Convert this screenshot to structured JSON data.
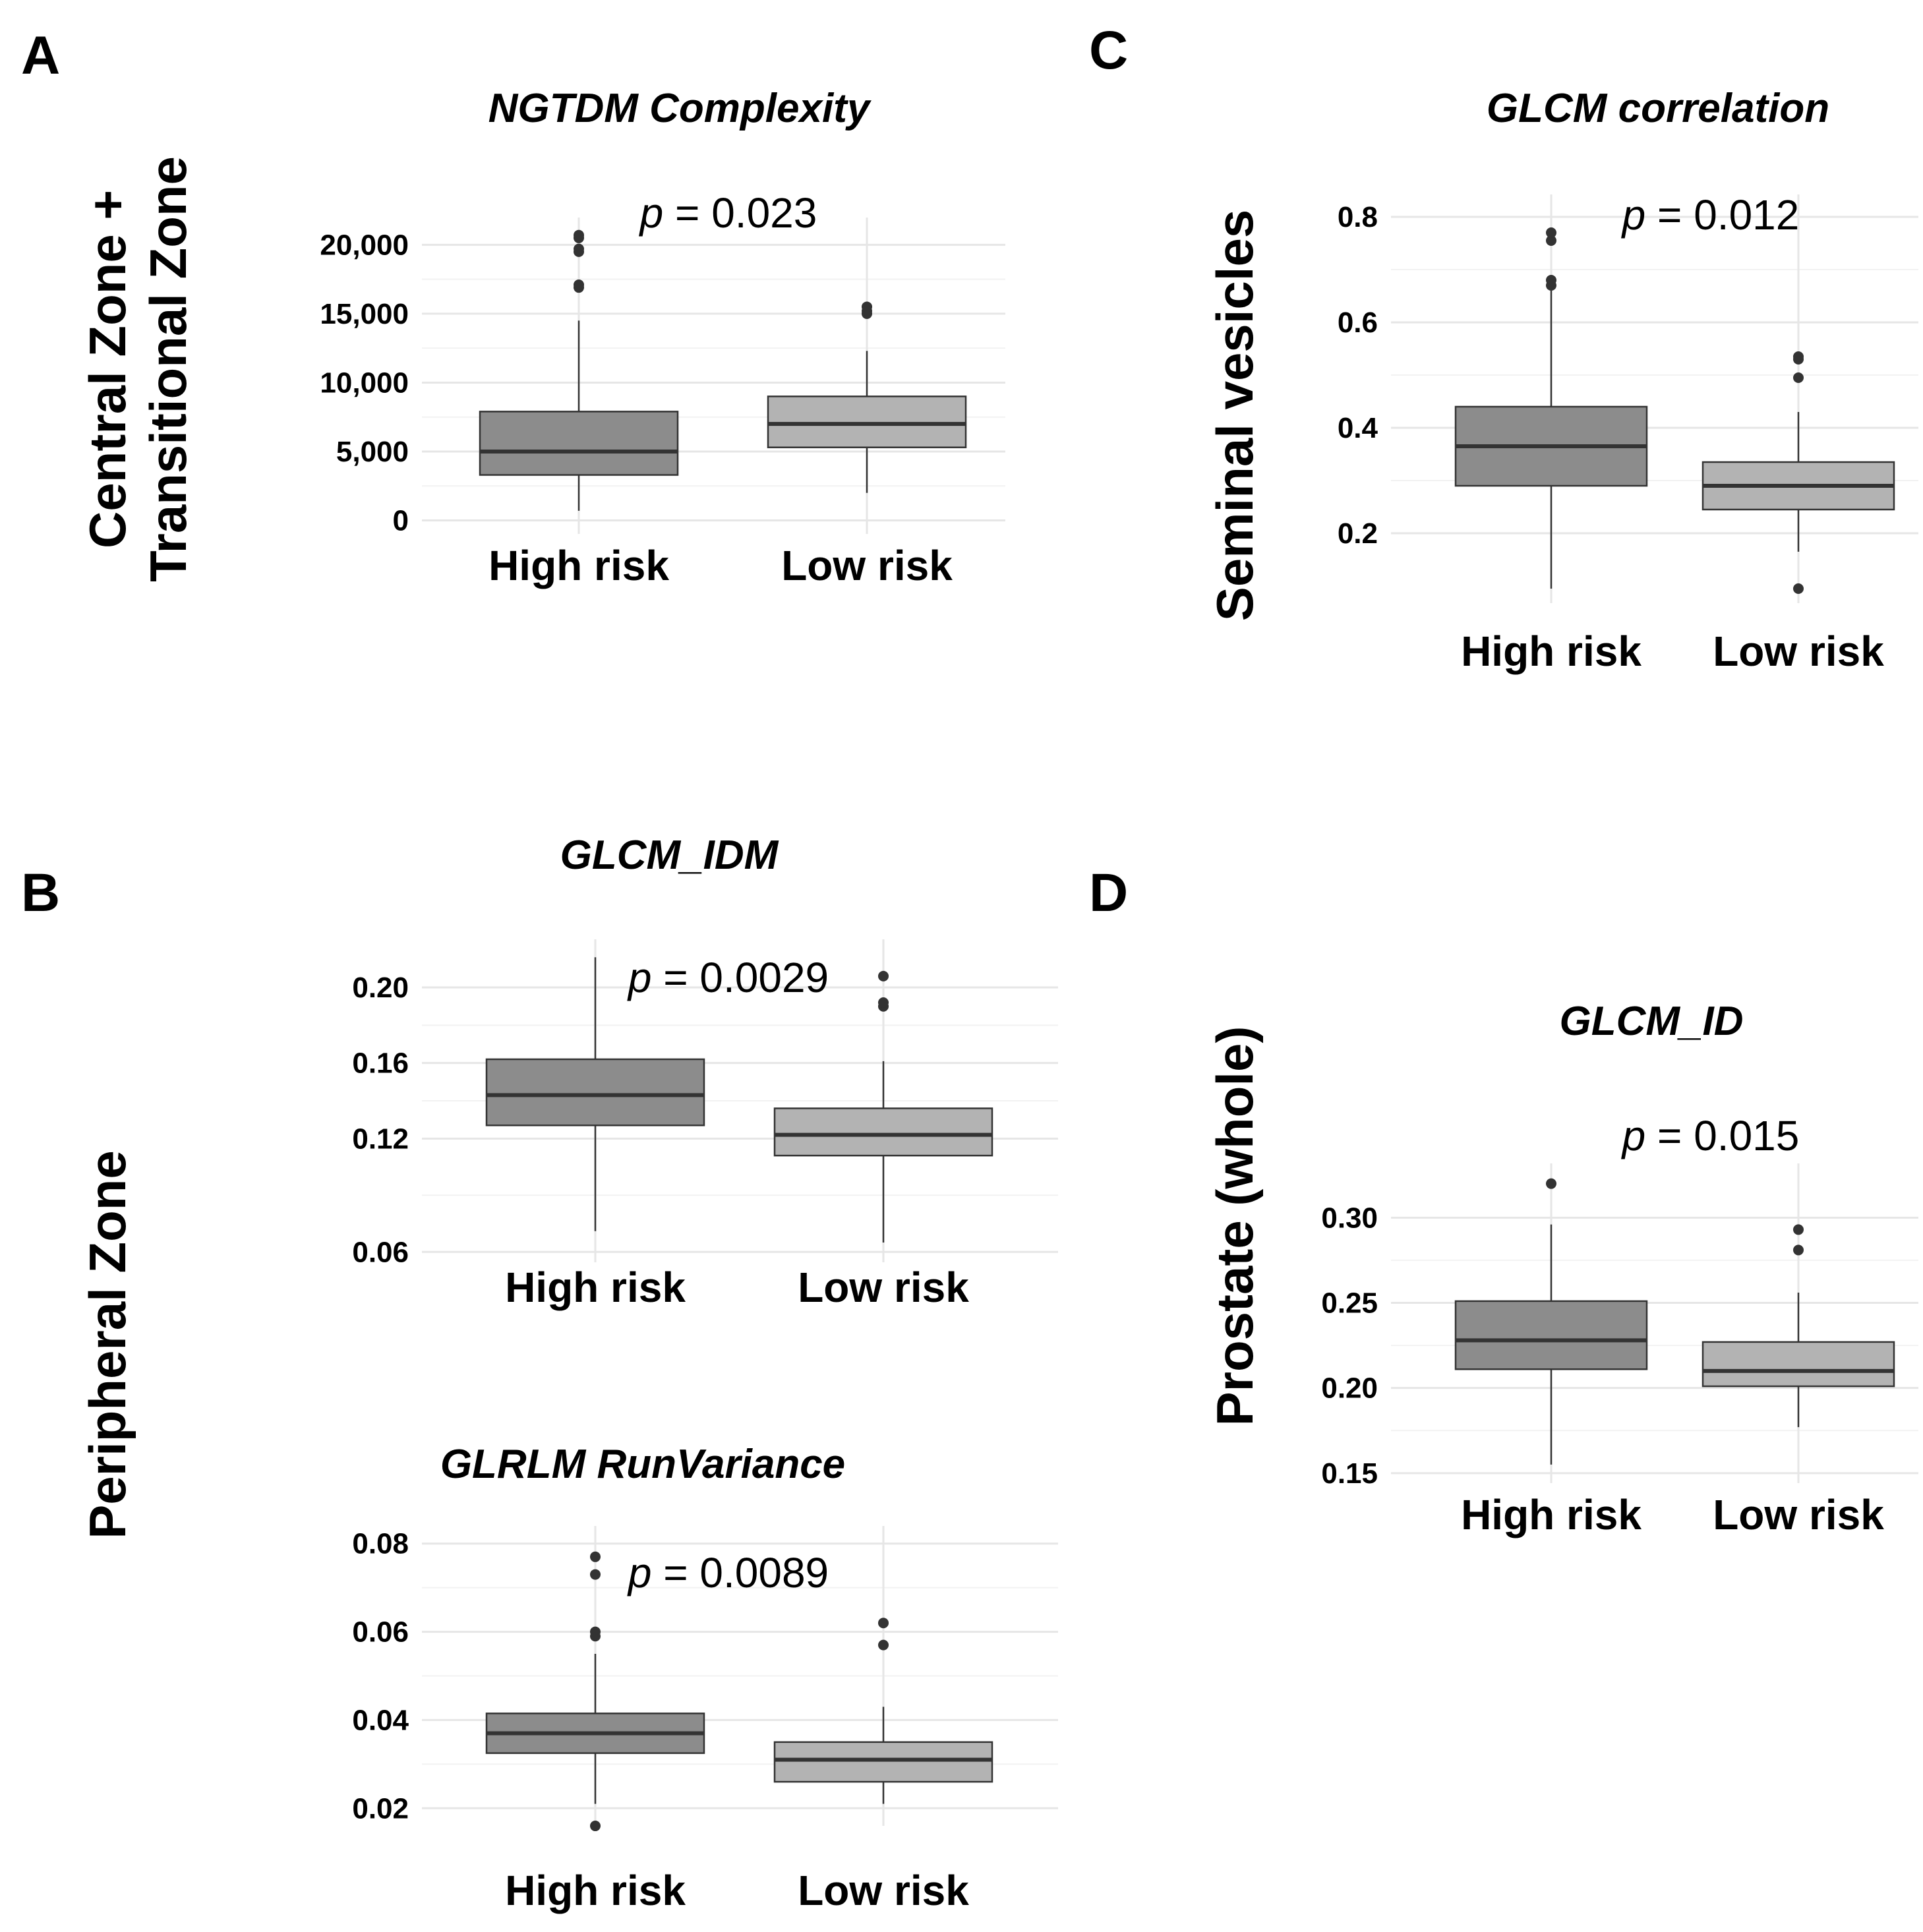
{
  "panel_letters": [
    "A",
    "B",
    "C",
    "D"
  ],
  "row_labels": {
    "A": [
      "Central Zone +",
      "Transitional Zone"
    ],
    "B": [
      "Peripheral Zone"
    ],
    "C": [
      "Seminal vesicles"
    ],
    "D": [
      "Prostate (whole)"
    ]
  },
  "colors": {
    "high_risk_fill": "#8c8c8c",
    "low_risk_fill": "#b3b3b3",
    "outline": "#333333"
  },
  "chart_data": [
    {
      "id": "A",
      "type": "boxplot",
      "title": "NGTDM Complexity",
      "categories": [
        "High risk",
        "Low risk"
      ],
      "p_prefix": "p",
      "p_rest": " = 0.023",
      "yticks": [
        0,
        5000,
        10000,
        15000,
        20000
      ],
      "ytick_labels": [
        "0",
        "5,000",
        "10,000",
        "15,000",
        "20,000"
      ],
      "ylim": [
        -500,
        21500
      ],
      "series": [
        {
          "name": "High risk",
          "min": 700,
          "q1": 3300,
          "median": 5000,
          "q3": 7900,
          "max": 14500,
          "outliers": [
            16900,
            17100,
            19500,
            19700,
            20500,
            20700
          ]
        },
        {
          "name": "Low risk",
          "min": 2000,
          "q1": 5300,
          "median": 7000,
          "q3": 9000,
          "max": 12300,
          "outliers": [
            15000,
            15200,
            15500
          ]
        }
      ]
    },
    {
      "id": "B1",
      "type": "boxplot",
      "title": "GLCM_IDM",
      "categories": [
        "High risk",
        "Low risk"
      ],
      "p_prefix": "p",
      "p_rest": " = 0.0029",
      "yticks": [
        0.06,
        0.12,
        0.16,
        0.2
      ],
      "ytick_labels": [
        "0.06",
        "0.12",
        "0.16",
        "0.20"
      ],
      "ylim": [
        0.058,
        0.222
      ],
      "series": [
        {
          "name": "High risk",
          "min": 0.071,
          "q1": 0.127,
          "median": 0.143,
          "q3": 0.162,
          "max": 0.216,
          "outliers": []
        },
        {
          "name": "Low risk",
          "min": 0.065,
          "q1": 0.111,
          "median": 0.122,
          "q3": 0.136,
          "max": 0.161,
          "outliers": [
            0.19,
            0.192,
            0.206
          ]
        }
      ]
    },
    {
      "id": "B2",
      "type": "boxplot",
      "title": "GLRLM RunVariance",
      "categories": [
        "High risk",
        "Low risk"
      ],
      "p_prefix": "p",
      "p_rest": " = 0.0089",
      "yticks": [
        0.02,
        0.04,
        0.06,
        0.08
      ],
      "ytick_labels": [
        "0.02",
        "0.04",
        "0.06",
        "0.08"
      ],
      "ylim": [
        0.0175,
        0.0825
      ],
      "series": [
        {
          "name": "High risk",
          "min": 0.021,
          "q1": 0.0325,
          "median": 0.037,
          "q3": 0.0415,
          "max": 0.055,
          "outliers": [
            0.016,
            0.059,
            0.06,
            0.073,
            0.077
          ]
        },
        {
          "name": "Low risk",
          "min": 0.021,
          "q1": 0.026,
          "median": 0.031,
          "q3": 0.035,
          "max": 0.043,
          "outliers": [
            0.057,
            0.062
          ]
        }
      ]
    },
    {
      "id": "C",
      "type": "boxplot",
      "title": "GLCM correlation",
      "categories": [
        "High risk",
        "Low risk"
      ],
      "p_prefix": "p",
      "p_rest": " = 0.012",
      "yticks": [
        0.2,
        0.4,
        0.6,
        0.8
      ],
      "ytick_labels": [
        "0.2",
        "0.4",
        "0.6",
        "0.8"
      ],
      "ylim": [
        0.08,
        0.83
      ],
      "series": [
        {
          "name": "High risk",
          "min": 0.095,
          "q1": 0.29,
          "median": 0.365,
          "q3": 0.44,
          "max": 0.66,
          "outliers": [
            0.67,
            0.68,
            0.755,
            0.77
          ]
        },
        {
          "name": "Low risk",
          "min": 0.165,
          "q1": 0.245,
          "median": 0.29,
          "q3": 0.335,
          "max": 0.43,
          "outliers": [
            0.095,
            0.495,
            0.53,
            0.535
          ]
        }
      ]
    },
    {
      "id": "D",
      "type": "boxplot",
      "title": "GLCM_ID",
      "categories": [
        "High risk",
        "Low risk"
      ],
      "p_prefix": "p",
      "p_rest": " = 0.015",
      "yticks": [
        0.15,
        0.2,
        0.25,
        0.3
      ],
      "ytick_labels": [
        "0.15",
        "0.20",
        "0.25",
        "0.30"
      ],
      "ylim": [
        0.148,
        0.328
      ],
      "series": [
        {
          "name": "High risk",
          "min": 0.155,
          "q1": 0.211,
          "median": 0.228,
          "q3": 0.251,
          "max": 0.296,
          "outliers": [
            0.32
          ]
        },
        {
          "name": "Low risk",
          "min": 0.177,
          "q1": 0.201,
          "median": 0.21,
          "q3": 0.227,
          "max": 0.256,
          "outliers": [
            0.281,
            0.293
          ]
        }
      ]
    }
  ]
}
